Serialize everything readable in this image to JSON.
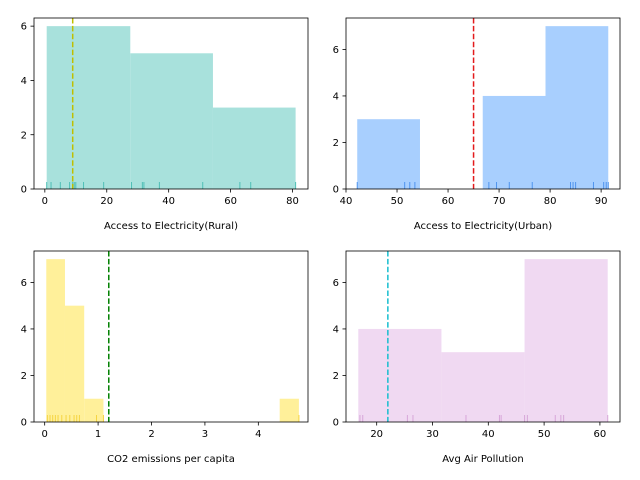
{
  "chart_data": [
    {
      "type": "histogram",
      "xlabel": "Access to Electricity(Rural)",
      "bins": [
        {
          "x0": 0.6,
          "x1": 27.6,
          "count": 6
        },
        {
          "x0": 27.6,
          "x1": 54.3,
          "count": 5
        },
        {
          "x0": 54.3,
          "x1": 81.0,
          "count": 3
        }
      ],
      "rug": [
        0.6,
        2,
        5,
        8,
        9,
        9.5,
        10,
        12.5,
        19,
        28,
        31.5,
        32,
        37,
        51,
        63,
        66.5,
        81
      ],
      "reference_line": {
        "value": 9,
        "color": "#bfbf00",
        "style": "dashed"
      },
      "color": "#a8e1dc",
      "rug_color": "#4fbfb6",
      "xlim": [
        -3.5,
        85
      ],
      "ylim": [
        0,
        6.3
      ],
      "xticks": [
        "0",
        "20",
        "40",
        "60",
        "80"
      ],
      "xtick_values": [
        0,
        20,
        40,
        60,
        80
      ],
      "yticks": [
        "0",
        "2",
        "4",
        "6"
      ],
      "ytick_values": [
        0,
        2,
        4,
        6
      ]
    },
    {
      "type": "histogram",
      "xlabel": "Access to Electricity(Urban)",
      "bins": [
        {
          "x0": 42.2,
          "x1": 54.5,
          "count": 3
        },
        {
          "x0": 54.5,
          "x1": 66.8,
          "count": 0
        },
        {
          "x0": 66.8,
          "x1": 79.1,
          "count": 4
        },
        {
          "x0": 79.1,
          "x1": 91.4,
          "count": 7
        }
      ],
      "rug": [
        42.2,
        51.5,
        52.5,
        53.5,
        68,
        69.5,
        72,
        76.5,
        84,
        84.5,
        85,
        88.5,
        90.5,
        91,
        91.4
      ],
      "reference_line": {
        "value": 65,
        "color": "#e31a1c",
        "style": "dashed"
      },
      "color": "#a8cffe",
      "rug_color": "#4f94ee",
      "xlim": [
        40,
        93.7
      ],
      "ylim": [
        0,
        7.35
      ],
      "xticks": [
        "40",
        "50",
        "60",
        "70",
        "80",
        "90"
      ],
      "xtick_values": [
        40,
        50,
        60,
        70,
        80,
        90
      ],
      "yticks": [
        "0",
        "2",
        "4",
        "6"
      ],
      "ytick_values": [
        0,
        2,
        4,
        6
      ]
    },
    {
      "type": "histogram",
      "xlabel": "CO2 emissions per capita",
      "bins": [
        {
          "x0": 0.03,
          "x1": 0.38,
          "count": 7
        },
        {
          "x0": 0.38,
          "x1": 0.74,
          "count": 5
        },
        {
          "x0": 0.74,
          "x1": 1.1,
          "count": 1
        },
        {
          "x0": 4.4,
          "x1": 4.76,
          "count": 1
        }
      ],
      "rug": [
        0.05,
        0.1,
        0.15,
        0.2,
        0.25,
        0.32,
        0.4,
        0.47,
        0.55,
        0.6,
        0.65,
        0.97,
        1.1,
        4.76
      ],
      "reference_line": {
        "value": 1.2,
        "color": "#008000",
        "style": "dashed"
      },
      "color": "#fff09a",
      "rug_color": "#f5d442",
      "xlim": [
        -0.2,
        4.93
      ],
      "ylim": [
        0,
        7.35
      ],
      "xticks": [
        "0",
        "1",
        "2",
        "3",
        "4"
      ],
      "xtick_values": [
        0,
        1,
        2,
        3,
        4
      ],
      "yticks": [
        "0",
        "2",
        "4",
        "6"
      ],
      "ytick_values": [
        0,
        2,
        4,
        6
      ]
    },
    {
      "type": "histogram",
      "xlabel": "Avg Air Pollution",
      "bins": [
        {
          "x0": 16.7,
          "x1": 31.6,
          "count": 4
        },
        {
          "x0": 31.6,
          "x1": 46.5,
          "count": 3
        },
        {
          "x0": 46.5,
          "x1": 61.4,
          "count": 7
        }
      ],
      "rug": [
        17,
        17.5,
        25.5,
        26.5,
        36,
        42,
        42.3,
        46.5,
        47,
        52,
        53,
        53.5,
        61.4
      ],
      "reference_line": {
        "value": 22,
        "color": "#17becf",
        "style": "dashed"
      },
      "color": "#f0d9f2",
      "rug_color": "#d7a6d9",
      "xlim": [
        14.5,
        63.6
      ],
      "ylim": [
        0,
        7.35
      ],
      "xticks": [
        "20",
        "30",
        "40",
        "50",
        "60"
      ],
      "xtick_values": [
        20,
        30,
        40,
        50,
        60
      ],
      "yticks": [
        "0",
        "2",
        "4",
        "6"
      ],
      "ytick_values": [
        0,
        2,
        4,
        6
      ]
    }
  ]
}
